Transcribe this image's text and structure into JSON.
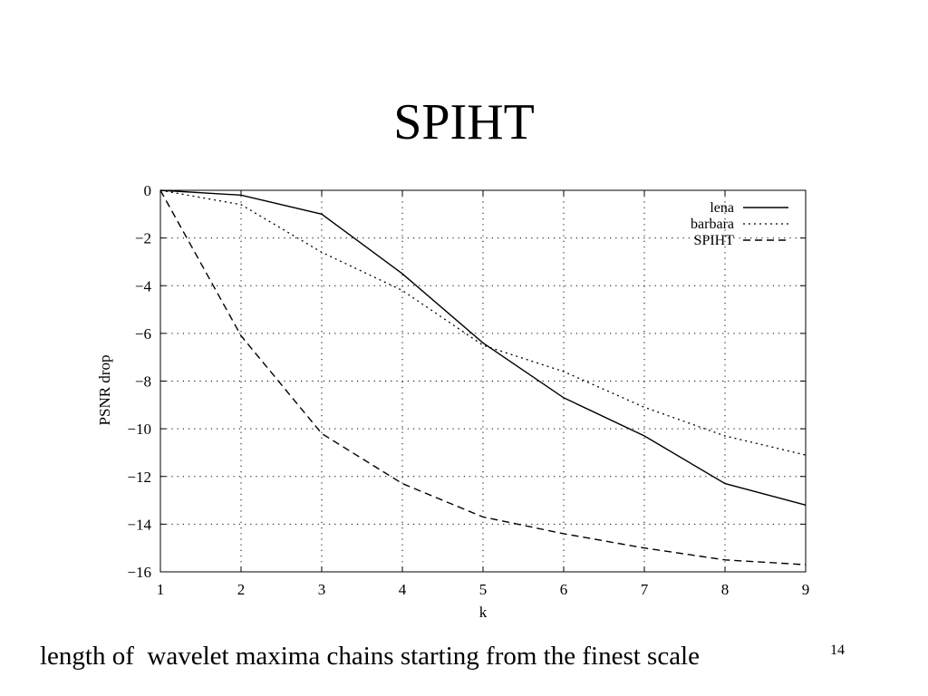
{
  "slide": {
    "title": "SPIHT",
    "caption": "length of  wavelet maxima chains starting from the finest scale",
    "page_number": "14"
  },
  "chart_data": {
    "type": "line",
    "xlabel": "k",
    "ylabel": "PSNR drop",
    "xlim": [
      1,
      9
    ],
    "ylim": [
      -16,
      0
    ],
    "x_ticks": [
      1,
      2,
      3,
      4,
      5,
      6,
      7,
      8,
      9
    ],
    "y_ticks": [
      0,
      -2,
      -4,
      -6,
      -8,
      -10,
      -12,
      -14,
      -16
    ],
    "x_tick_labels": [
      "1",
      "2",
      "3",
      "4",
      "5",
      "6",
      "7",
      "8",
      "9"
    ],
    "y_tick_labels": [
      "0",
      "−2",
      "−4",
      "−6",
      "−8",
      "−10",
      "−12",
      "−14",
      "−16"
    ],
    "grid": true,
    "legend_position": "top-right",
    "x": [
      1,
      2,
      3,
      4,
      5,
      6,
      7,
      8,
      9
    ],
    "series": [
      {
        "name": "lena",
        "style": "solid",
        "values": [
          0,
          -0.2,
          -1.0,
          -3.5,
          -6.4,
          -8.7,
          -10.3,
          -12.3,
          -13.2
        ]
      },
      {
        "name": "barbara",
        "style": "dotted",
        "values": [
          0,
          -0.6,
          -2.6,
          -4.2,
          -6.5,
          -7.6,
          -9.1,
          -10.3,
          -11.1
        ]
      },
      {
        "name": "SPIHT",
        "style": "dashed",
        "values": [
          0,
          -6.1,
          -10.2,
          -12.3,
          -13.7,
          -14.4,
          -15.0,
          -15.5,
          -15.7
        ]
      }
    ]
  }
}
